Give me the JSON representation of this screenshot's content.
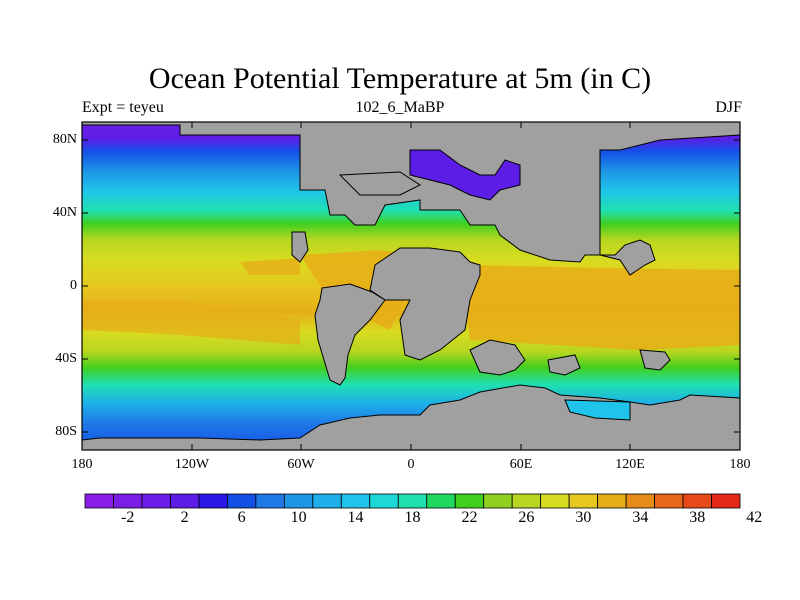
{
  "title": "Ocean Potential Temperature at 5m (in C)",
  "subtitle_left": "Expt = teyeu",
  "subtitle_center": "102_6_MaBP",
  "subtitle_right": "DJF",
  "lat_labels": [
    "80N",
    "40N",
    "0",
    "40S",
    "80S"
  ],
  "lon_labels": [
    "180",
    "120W",
    "60W",
    "0",
    "60E",
    "120E",
    "180"
  ],
  "colorbar": {
    "labels": [
      "-2",
      "2",
      "6",
      "10",
      "14",
      "18",
      "22",
      "26",
      "30",
      "34",
      "38",
      "42"
    ],
    "colors": [
      "#8a1ee6",
      "#7a1ee6",
      "#6a1ee6",
      "#5c1ee6",
      "#2a18e6",
      "#1450e6",
      "#1e78e6",
      "#1e96e6",
      "#1eaeea",
      "#20c4ea",
      "#1ed8d8",
      "#20e0b0",
      "#20d860",
      "#40d020",
      "#90d020",
      "#b8d620",
      "#d8dc20",
      "#e6c820",
      "#e6ae18",
      "#e68a18",
      "#e66818",
      "#e64a18",
      "#e62818"
    ],
    "land_color": "#a0a0a0",
    "coast_color": "#000000"
  }
}
